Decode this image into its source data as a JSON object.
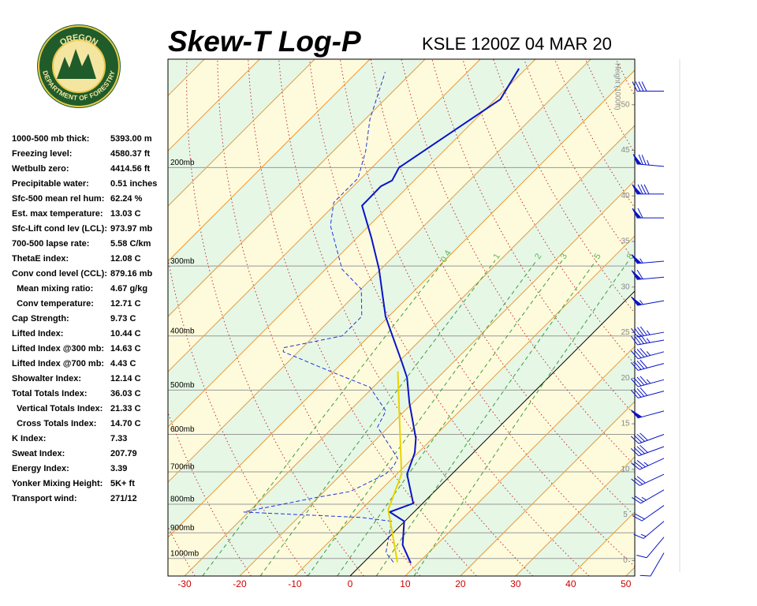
{
  "header": {
    "title": "Skew-T Log-P",
    "station": "KSLE 1200Z 04 MAR 20"
  },
  "logo": {
    "top": "OREGON",
    "bottom": "DEPARTMENT OF FORESTRY"
  },
  "indices": [
    [
      "1000-500 mb thick:",
      "5393.00 m"
    ],
    [
      "Freezing level:",
      "4580.37 ft"
    ],
    [
      "Wetbulb zero:",
      "4414.56 ft"
    ],
    [
      "Precipitable water:",
      "0.51 inches"
    ],
    [
      "Sfc-500 mean rel hum:",
      "62.24 %"
    ],
    [
      "Est. max temperature:",
      "13.03 C"
    ],
    [
      "Sfc-Lift cond lev (LCL):",
      "973.97 mb"
    ],
    [
      "700-500 lapse rate:",
      "5.58 C/km"
    ],
    [
      "ThetaE index:",
      "12.08 C"
    ],
    [
      "Conv cond level (CCL):",
      "879.16 mb"
    ],
    [
      "  Mean mixing ratio:",
      "4.67 g/kg"
    ],
    [
      "  Conv temperature:",
      "12.71 C"
    ],
    [
      "Cap Strength:",
      "9.73 C"
    ],
    [
      "Lifted Index:",
      "10.44 C"
    ],
    [
      "Lifted Index @300 mb:",
      "14.63 C"
    ],
    [
      "Lifted Index @700 mb:",
      "4.43 C"
    ],
    [
      "Showalter Index:",
      "12.14 C"
    ],
    [
      "Total Totals Index:",
      "36.03 C"
    ],
    [
      "  Vertical Totals Index:",
      "21.33 C"
    ],
    [
      "  Cross Totals Index:",
      "14.70 C"
    ],
    [
      "K Index:",
      "7.33"
    ],
    [
      "Sweat Index:",
      "207.79"
    ],
    [
      "Energy Index:",
      "3.39"
    ],
    [
      "Yonker Mixing Height:",
      "5K+ ft"
    ],
    [
      "Transport wind:",
      "271/12"
    ]
  ],
  "chart_data": {
    "type": "skewt",
    "xlim": [
      -33,
      51.6
    ],
    "xticks": [
      -30,
      -20,
      -10,
      0,
      10,
      20,
      30,
      40,
      50
    ],
    "ylog": true,
    "ylim": [
      1075,
      128
    ],
    "yticks": [
      {
        "value": 200,
        "label": "200mb"
      },
      {
        "value": 300,
        "label": "300mb"
      },
      {
        "value": 400,
        "label": "400mb"
      },
      {
        "value": 500,
        "label": "500mb"
      },
      {
        "value": 600,
        "label": "600mb"
      },
      {
        "value": 700,
        "label": "700mb"
      },
      {
        "value": 800,
        "label": "800mb"
      },
      {
        "value": 900,
        "label": "900mb"
      },
      {
        "value": 1000,
        "label": "1000mb"
      }
    ],
    "height_label": "Height (1000ft)",
    "hlim": [
      -1.7,
      55
    ],
    "hticks": [
      0,
      5,
      10,
      15,
      20,
      25,
      30,
      35,
      40,
      45,
      50
    ],
    "mixing_ratios": [
      0.4,
      1,
      2,
      3,
      5,
      8
    ],
    "series": [
      {
        "color": "#0a14c8",
        "style": "solid",
        "pressure": [
          1020,
          946,
          858,
          826,
          797,
          707,
          647,
          610,
          527,
          475,
          446,
          369,
          304,
          267,
          234,
          216,
          211,
          200,
          151,
          133
        ],
        "values": [
          8.7,
          3.9,
          -0.1,
          -4.4,
          -1.7,
          -8.1,
          -10.6,
          -13.0,
          -20.6,
          -25.6,
          -29.3,
          -40.6,
          -50.3,
          -57.4,
          -64.9,
          -65.0,
          -64.0,
          -65.1,
          -59.1,
          -61.3
        ]
      },
      {
        "color": "#2233dd",
        "style": "dashed",
        "pressure": [
          1016,
          977,
          858,
          845,
          826,
          779,
          759,
          707,
          684,
          662,
          582,
          545,
          494,
          463,
          427,
          420,
          400,
          369,
          330,
          304,
          254,
          231,
          209,
          187,
          164,
          135
        ],
        "values": [
          5.4,
          2.3,
          -2.4,
          -8.4,
          -30.9,
          -20.6,
          -15.3,
          -12.0,
          -12.0,
          -12.7,
          -22.0,
          -23.4,
          -30.6,
          -40.6,
          -52.7,
          -53.4,
          -44.9,
          -44.9,
          -49.9,
          -57.0,
          -67.0,
          -70.6,
          -70.6,
          -74.1,
          -79.1,
          -84.9
        ]
      },
      {
        "color": "#e6d400",
        "style": "solid",
        "pressure": [
          1016,
          818,
          707,
          463
        ],
        "values": [
          6.1,
          -5.1,
          -9.1,
          -28.4
        ]
      }
    ],
    "winds": {
      "pressure": [
        146,
        199,
        223,
        246,
        294,
        314,
        346,
        394,
        407,
        427,
        448,
        479,
        502,
        545,
        600,
        631,
        662,
        707,
        754,
        804,
        858,
        916,
        977
      ],
      "direction": [
        270,
        275,
        270,
        270,
        265,
        265,
        260,
        260,
        260,
        255,
        255,
        255,
        255,
        255,
        250,
        250,
        245,
        245,
        240,
        235,
        230,
        220,
        210
      ],
      "speed": [
        40,
        75,
        80,
        60,
        55,
        60,
        55,
        45,
        45,
        45,
        40,
        45,
        40,
        50,
        40,
        40,
        35,
        30,
        25,
        20,
        15,
        10,
        10
      ]
    }
  }
}
